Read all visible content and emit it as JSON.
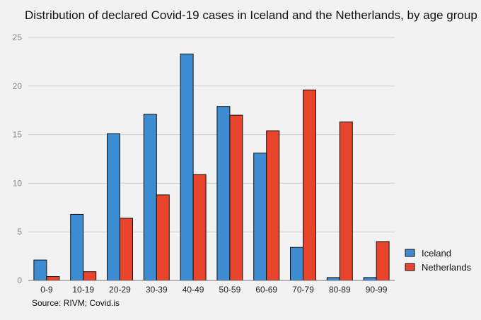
{
  "chart_data": {
    "type": "bar",
    "title": "Distribution of declared Covid-19 cases in Iceland and the Netherlands, by age group",
    "source": "Source: RIVM; Covid.is",
    "xlabel": "",
    "ylabel": "",
    "ylim": [
      0,
      25
    ],
    "yticks": [
      0,
      5,
      10,
      15,
      20,
      25
    ],
    "grid": true,
    "legend_position": "right",
    "categories": [
      "0-9",
      "10-19",
      "20-29",
      "30-39",
      "40-49",
      "50-59",
      "60-69",
      "70-79",
      "80-89",
      "90-99"
    ],
    "series": [
      {
        "name": "Iceland",
        "color": "#3d8bd0",
        "values": [
          2.1,
          6.8,
          15.1,
          17.1,
          23.3,
          17.9,
          13.1,
          3.4,
          0.3,
          0.3
        ]
      },
      {
        "name": "Netherlands",
        "color": "#e8442c",
        "values": [
          0.4,
          0.9,
          6.4,
          8.8,
          10.9,
          17.0,
          15.4,
          19.6,
          16.3,
          4.0
        ]
      }
    ]
  }
}
